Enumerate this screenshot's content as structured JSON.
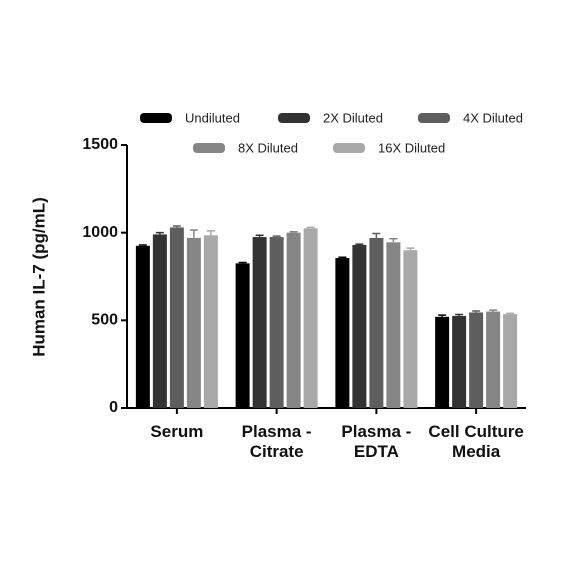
{
  "chart_data": {
    "type": "bar",
    "y_label": "Human  IL-7 (pg/mL)",
    "categories": [
      "Serum",
      "Plasma -\nCitrate",
      "Plasma -\nEDTA",
      "Cell Culture\nMedia"
    ],
    "series": [
      {
        "name": "Undiluted",
        "color": "#000000",
        "values": [
          925,
          825,
          855,
          520
        ],
        "errors": [
          5,
          5,
          5,
          10
        ]
      },
      {
        "name": "2X Diluted",
        "color": "#333333",
        "values": [
          990,
          975,
          930,
          525
        ],
        "errors": [
          10,
          10,
          5,
          8
        ]
      },
      {
        "name": "4X Diluted",
        "color": "#5e5e5e",
        "values": [
          1030,
          975,
          970,
          545
        ],
        "errors": [
          8,
          5,
          25,
          8
        ]
      },
      {
        "name": "8X Diluted",
        "color": "#858585",
        "values": [
          970,
          1000,
          945,
          550
        ],
        "errors": [
          45,
          5,
          20,
          8
        ]
      },
      {
        "name": "16X Diluted",
        "color": "#a8a8a8",
        "values": [
          985,
          1025,
          900,
          535
        ],
        "errors": [
          25,
          5,
          12,
          5
        ]
      }
    ],
    "ylim": [
      0,
      1500
    ],
    "yticks": [
      0,
      500,
      1000,
      1500
    ]
  }
}
